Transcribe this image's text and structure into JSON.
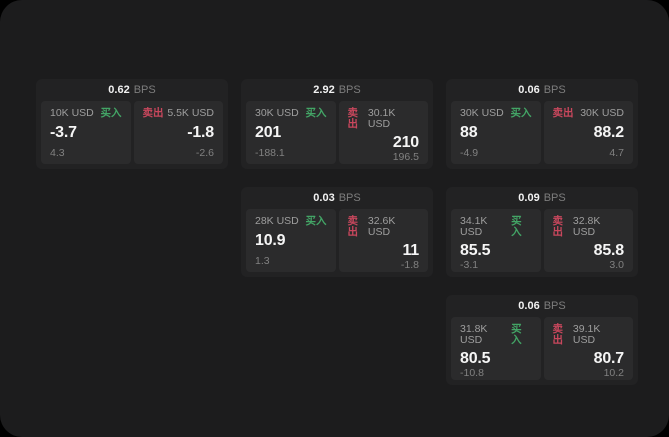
{
  "labels": {
    "bps_unit": "BPS",
    "buy": "买入",
    "sell": "卖出"
  },
  "colors": {
    "buy_accent": "#43a566",
    "sell_accent": "#c9475d"
  },
  "cards": [
    {
      "bps": "0.62",
      "buy": {
        "size": "10K USD",
        "price": "-3.7",
        "sub": "4.3"
      },
      "sell": {
        "size": "5.5K USD",
        "price": "-1.8",
        "sub": "-2.6"
      }
    },
    {
      "bps": "2.92",
      "buy": {
        "size": "30K USD",
        "price": "201",
        "sub": "-188.1"
      },
      "sell": {
        "size": "30.1K USD",
        "price": "210",
        "sub": "196.5"
      }
    },
    {
      "bps": "0.06",
      "buy": {
        "size": "30K USD",
        "price": "88",
        "sub": "-4.9"
      },
      "sell": {
        "size": "30K USD",
        "price": "88.2",
        "sub": "4.7"
      }
    },
    {
      "bps": "0.03",
      "buy": {
        "size": "28K USD",
        "price": "10.9",
        "sub": "1.3"
      },
      "sell": {
        "size": "32.6K USD",
        "price": "11",
        "sub": "-1.8"
      }
    },
    {
      "bps": "0.09",
      "buy": {
        "size": "34.1K USD",
        "price": "85.5",
        "sub": "-3.1"
      },
      "sell": {
        "size": "32.8K USD",
        "price": "85.8",
        "sub": "3.0"
      }
    },
    {
      "bps": "0.06",
      "buy": {
        "size": "31.8K USD",
        "price": "80.5",
        "sub": "-10.8"
      },
      "sell": {
        "size": "39.1K USD",
        "price": "80.7",
        "sub": "10.2"
      }
    }
  ]
}
